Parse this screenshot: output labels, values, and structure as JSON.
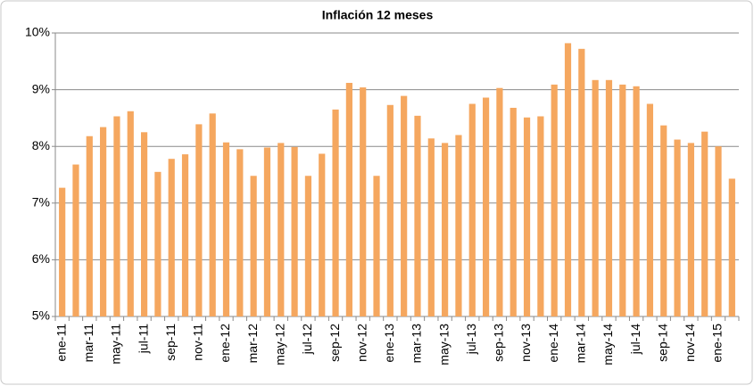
{
  "chart_data": {
    "type": "bar",
    "title": "Inflación 12 meses",
    "categories": [
      "ene-11",
      null,
      "mar-11",
      null,
      "may-11",
      null,
      "jul-11",
      null,
      "sep-11",
      null,
      "nov-11",
      null,
      "ene-12",
      null,
      "mar-12",
      null,
      "may-12",
      null,
      "jul-12",
      null,
      "sep-12",
      null,
      "nov-12",
      null,
      "ene-13",
      null,
      "mar-13",
      null,
      "may-13",
      null,
      "jul-13",
      null,
      "sep-13",
      null,
      "nov-13",
      null,
      "ene-14",
      null,
      "mar-14",
      null,
      "may-14",
      null,
      "jul-14",
      null,
      "sep-14",
      null,
      "nov-14",
      null,
      "ene-15",
      null
    ],
    "values": [
      7.27,
      7.68,
      8.18,
      8.34,
      8.53,
      8.62,
      8.25,
      7.55,
      7.78,
      7.86,
      8.39,
      8.58,
      8.07,
      7.95,
      7.48,
      7.98,
      8.06,
      7.99,
      7.48,
      7.87,
      8.65,
      9.12,
      9.04,
      7.48,
      8.73,
      8.89,
      8.54,
      8.14,
      8.06,
      8.2,
      8.75,
      8.86,
      9.03,
      8.68,
      8.51,
      8.53,
      9.09,
      9.82,
      9.72,
      9.17,
      9.17,
      9.09,
      9.06,
      8.75,
      8.37,
      8.12,
      8.06,
      8.26,
      8.0,
      7.43
    ],
    "color": "#f5a75f",
    "ylim": [
      5,
      10
    ],
    "yticks": [
      {
        "value": 5,
        "label": "5%"
      },
      {
        "value": 6,
        "label": "6%"
      },
      {
        "value": 7,
        "label": "7%"
      },
      {
        "value": 8,
        "label": "8%"
      },
      {
        "value": 9,
        "label": "9%"
      },
      {
        "value": 10,
        "label": "10%"
      }
    ],
    "grid": true
  }
}
